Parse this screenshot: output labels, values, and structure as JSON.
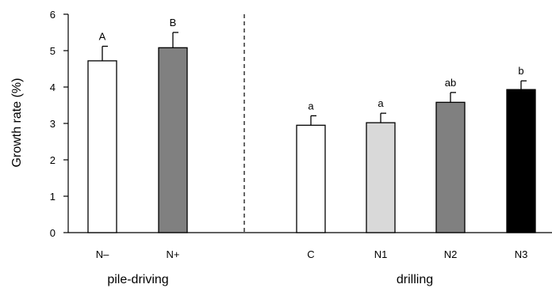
{
  "chart_data": {
    "type": "bar",
    "ylabel": "Growth rate (%)",
    "ylim": [
      0,
      6
    ],
    "yticks": [
      0,
      1,
      2,
      3,
      4,
      5,
      6
    ],
    "grid": false,
    "legend": "none",
    "groups": [
      {
        "label": "pile-driving"
      },
      {
        "label": "drilling"
      }
    ],
    "bars": [
      {
        "category": "N–",
        "group": 0,
        "value": 4.72,
        "error": 0.4,
        "significance": "A",
        "color": "#ffffff"
      },
      {
        "category": "N+",
        "group": 0,
        "value": 5.08,
        "error": 0.42,
        "significance": "B",
        "color": "#808080"
      },
      {
        "category": "C",
        "group": 1,
        "value": 2.95,
        "error": 0.26,
        "significance": "a",
        "color": "#ffffff"
      },
      {
        "category": "N1",
        "group": 1,
        "value": 3.02,
        "error": 0.26,
        "significance": "a",
        "color": "#d9d9d9"
      },
      {
        "category": "N2",
        "group": 1,
        "value": 3.58,
        "error": 0.27,
        "significance": "ab",
        "color": "#808080"
      },
      {
        "category": "N3",
        "group": 1,
        "value": 3.93,
        "error": 0.24,
        "significance": "b",
        "color": "#000000"
      }
    ],
    "group_separator": "dashed vertical line"
  }
}
